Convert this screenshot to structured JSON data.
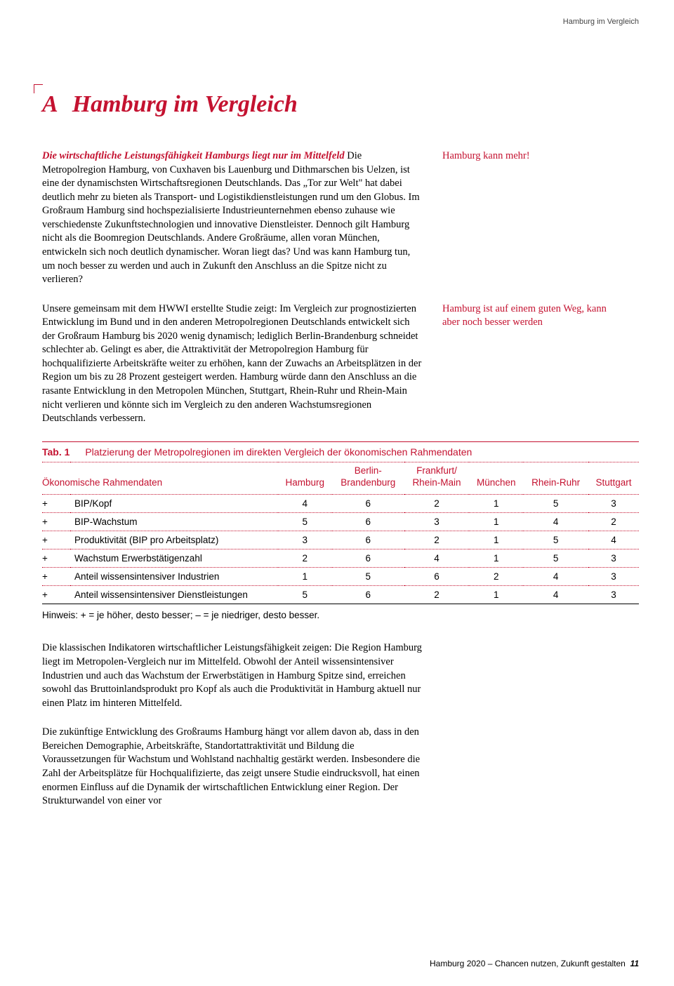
{
  "running_head": "Hamburg im Vergleich",
  "chapter": {
    "letter": "A",
    "title": "Hamburg im Vergleich"
  },
  "para1": {
    "lead": "Die wirtschaftliche Leistungsfähigkeit Hamburgs liegt nur im Mittelfeld",
    "body": "Die Metropolregion Hamburg, von Cuxhaven bis Lauenburg und Dithmarschen bis Uelzen, ist eine der dynamischsten Wirtschaftsregionen Deutschlands. Das „Tor zur Welt\" hat dabei deutlich mehr zu bieten als Transport- und Logistikdienstleistungen rund um den Globus. Im Großraum Hamburg sind hochspezialisierte Industrieunternehmen ebenso zuhause wie verschiedenste Zukunftstechnologien und innovative Dienstleister. Dennoch gilt Hamburg nicht als die Boomregion Deutschlands. Andere Großräume, allen voran München, entwickeln sich noch deutlich dynamischer. Woran liegt das? Und was kann Hamburg tun, um noch besser zu werden und auch in Zukunft den Anschluss an die Spitze nicht zu verlieren?",
    "sidenote": "Hamburg kann mehr!"
  },
  "para2": {
    "body": "Unsere gemeinsam mit dem HWWI erstellte Studie zeigt: Im Vergleich zur prognostizierten Entwicklung im Bund und in den anderen Metropolregionen Deutschlands entwickelt sich der Großraum Hamburg bis 2020 wenig dynamisch; lediglich Berlin-Brandenburg schneidet schlechter ab. Gelingt es aber, die Attraktivität der Metropolregion Hamburg für hochqualifizierte Arbeitskräfte weiter zu erhöhen, kann der Zuwachs an Arbeitsplätzen in der Region um bis zu 28 Prozent gesteigert werden. Hamburg würde dann den Anschluss an die rasante Entwicklung in den Metropolen München, Stuttgart, Rhein-Ruhr und Rhein-Main nicht verlieren und könnte sich im Vergleich zu den anderen Wachstumsregionen Deutschlands verbessern.",
    "sidenote": "Hamburg ist auf einem guten Weg, kann aber noch besser werden"
  },
  "table": {
    "number": "Tab. 1",
    "title": "Platzierung der Metropolregionen im direkten Vergleich der ökonomischen Rahmendaten",
    "col0": "Ökonomische Rahmendaten",
    "cols": [
      "Hamburg",
      "Berlin-\nBrandenburg",
      "Frankfurt/\nRhein-Main",
      "München",
      "Rhein-Ruhr",
      "Stuttgart"
    ],
    "rows": [
      {
        "sign": "+",
        "label": "BIP/Kopf",
        "v": [
          4,
          6,
          2,
          1,
          5,
          3
        ]
      },
      {
        "sign": "+",
        "label": "BIP-Wachstum",
        "v": [
          5,
          6,
          3,
          1,
          4,
          2
        ]
      },
      {
        "sign": "+",
        "label": "Produktivität (BIP pro Arbeitsplatz)",
        "v": [
          3,
          6,
          2,
          1,
          5,
          4
        ]
      },
      {
        "sign": "+",
        "label": "Wachstum Erwerbstätigenzahl",
        "v": [
          2,
          6,
          4,
          1,
          5,
          3
        ]
      },
      {
        "sign": "+",
        "label": "Anteil wissensintensiver Industrien",
        "v": [
          1,
          5,
          6,
          2,
          4,
          3
        ]
      },
      {
        "sign": "+",
        "label": "Anteil wissensintensiver Dienstleistungen",
        "v": [
          5,
          6,
          2,
          1,
          4,
          3
        ]
      }
    ],
    "note": "Hinweis: + = je höher, desto besser; – = je niedriger, desto besser."
  },
  "para3": {
    "body": "Die klassischen Indikatoren wirtschaftlicher Leistungsfähigkeit zeigen: Die Region Hamburg liegt im Metropolen-Vergleich nur im Mittelfeld. Obwohl der Anteil wissensintensiver Industrien und  auch das Wachstum der Erwerbstätigen in Hamburg Spitze sind, erreichen sowohl das Bruttoinlandsprodukt pro Kopf als auch die Produktivität in Hamburg aktuell nur einen Platz im hinteren Mittelfeld."
  },
  "para4": {
    "body": "Die zukünftige Entwicklung des Großraums Hamburg hängt vor allem davon ab, dass in den Bereichen Demographie, Arbeitskräfte, Standortattraktivität und Bildung die Voraussetzungen für Wachstum und Wohlstand nachhaltig gestärkt werden. Insbesondere die Zahl der Arbeitsplätze für Hochqualifizierte, das zeigt unsere Studie eindrucksvoll, hat einen enormen Einfluss auf die Dynamik der wirtschaftlichen Entwicklung einer Region. Der Strukturwandel von einer vor"
  },
  "footer": {
    "text": "Hamburg 2020 – Chancen nutzen, Zukunft gestalten",
    "page": "11"
  },
  "colors": {
    "accent": "#c41230",
    "text": "#000000",
    "bg": "#ffffff"
  }
}
